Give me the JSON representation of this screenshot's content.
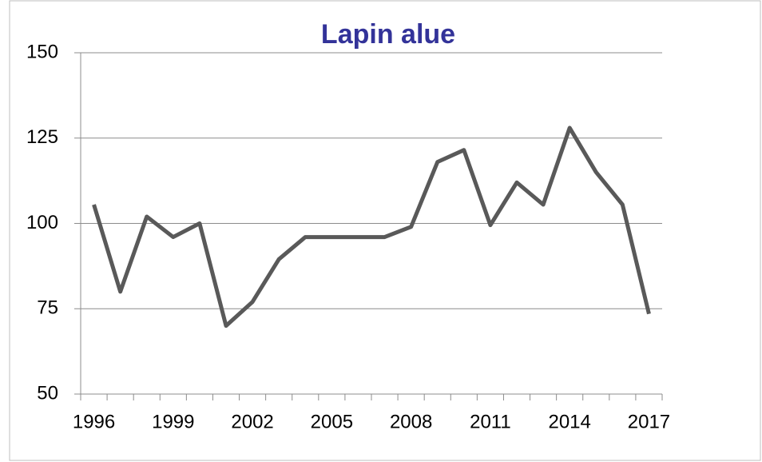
{
  "chart_data": {
    "type": "line",
    "title": "Lapin alue",
    "categories": [
      "1996",
      null,
      null,
      "1999",
      null,
      null,
      "2002",
      null,
      null,
      "2005",
      null,
      null,
      "2008",
      null,
      null,
      "2011",
      null,
      null,
      "2014",
      null,
      null,
      "2017"
    ],
    "series": [
      {
        "name": "Lapin alue",
        "color": "#595959",
        "values": [
          105.5,
          80,
          102,
          96,
          100,
          70,
          77,
          89.5,
          96,
          96,
          96,
          96,
          99,
          118,
          121.5,
          99.5,
          112,
          105.5,
          128,
          115,
          105.5,
          73.5
        ]
      }
    ],
    "ylim": [
      50,
      150
    ],
    "yticks": [
      50,
      75,
      100,
      125,
      150
    ],
    "grid": true
  }
}
